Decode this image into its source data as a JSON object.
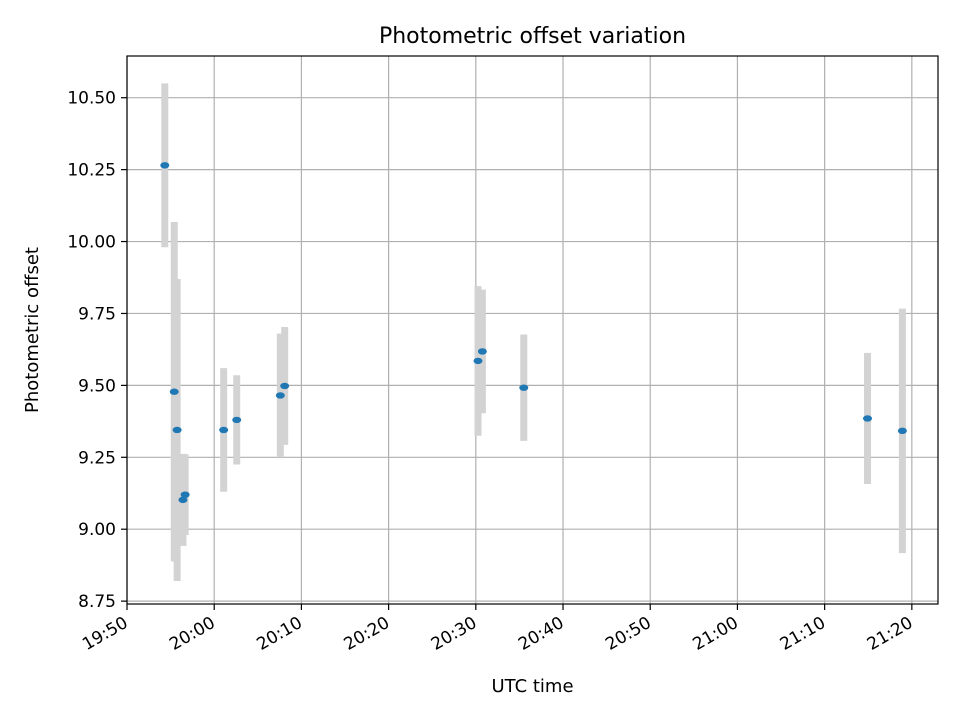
{
  "chart_data": {
    "type": "scatter",
    "title": "Photometric offset variation",
    "xlabel": "UTC time",
    "ylabel": "Photometric offset",
    "grid": true,
    "xlim": [
      "19:50",
      "21:23"
    ],
    "ylim": [
      8.74,
      10.645
    ],
    "x_ticks": [
      "19:50",
      "20:00",
      "20:10",
      "20:20",
      "20:30",
      "20:40",
      "20:50",
      "21:00",
      "21:10",
      "21:20"
    ],
    "y_ticks": [
      "8.75",
      "9.00",
      "9.25",
      "9.50",
      "9.75",
      "10.00",
      "10.25",
      "10.50"
    ],
    "point_color": "#1f77b4",
    "errorbar_color": "#d3d3d3",
    "points": [
      {
        "x": "19:54:20",
        "y": 10.265,
        "err": 0.285
      },
      {
        "x": "19:55:25",
        "y": 9.478,
        "err": 0.59
      },
      {
        "x": "19:55:45",
        "y": 9.345,
        "err": 0.525
      },
      {
        "x": "19:56:25",
        "y": 9.102,
        "err": 0.16
      },
      {
        "x": "19:56:40",
        "y": 9.12,
        "err": 0.14
      },
      {
        "x": "20:01:05",
        "y": 9.345,
        "err": 0.215
      },
      {
        "x": "20:02:35",
        "y": 9.38,
        "err": 0.155
      },
      {
        "x": "20:07:35",
        "y": 9.465,
        "err": 0.215
      },
      {
        "x": "20:08:05",
        "y": 9.498,
        "err": 0.205
      },
      {
        "x": "20:30:15",
        "y": 9.585,
        "err": 0.26
      },
      {
        "x": "20:30:45",
        "y": 9.618,
        "err": 0.215
      },
      {
        "x": "20:35:30",
        "y": 9.492,
        "err": 0.185
      },
      {
        "x": "21:14:55",
        "y": 9.385,
        "err": 0.228
      },
      {
        "x": "21:18:55",
        "y": 9.342,
        "err": 0.425
      }
    ]
  }
}
